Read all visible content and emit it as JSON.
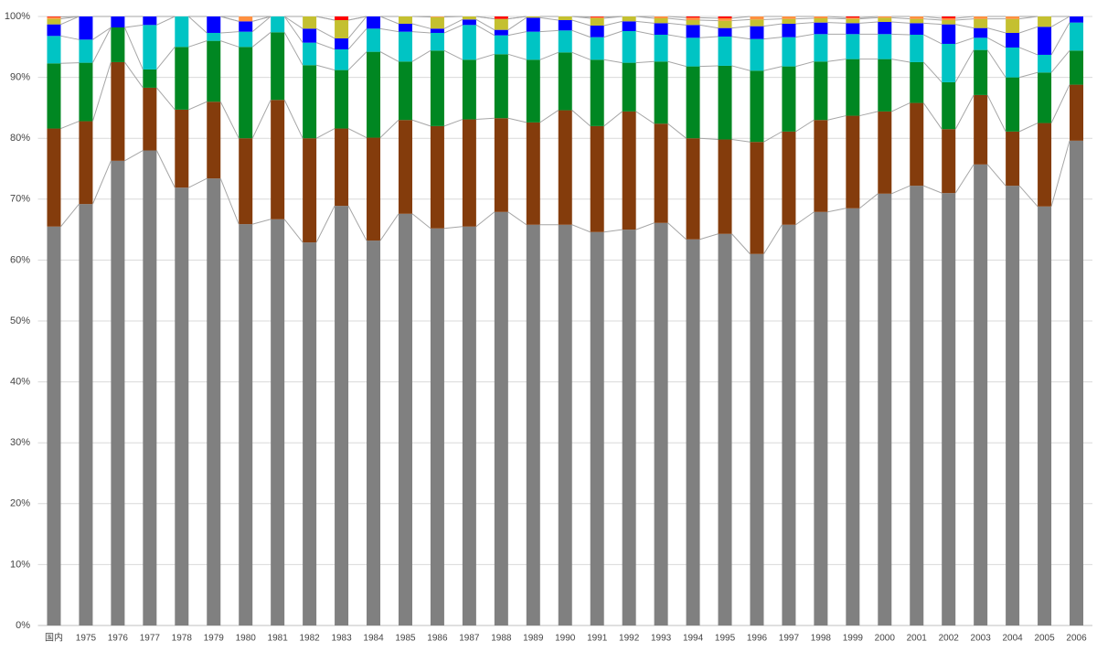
{
  "chart_data": {
    "type": "bar",
    "stacked": true,
    "categories": [
      "国内",
      "1975",
      "1976",
      "1977",
      "1978",
      "1979",
      "1980",
      "1981",
      "1982",
      "1983",
      "1984",
      "1985",
      "1986",
      "1987",
      "1988",
      "1989",
      "1990",
      "1991",
      "1992",
      "1993",
      "1994",
      "1995",
      "1996",
      "1997",
      "1998",
      "1999",
      "2000",
      "2001",
      "2002",
      "2003",
      "2004",
      "2005",
      "2006"
    ],
    "series": [
      {
        "color": "#808080",
        "values": [
          65.5,
          69.2,
          76.3,
          78.0,
          71.9,
          73.4,
          65.9,
          66.7,
          62.9,
          68.9,
          63.2,
          67.6,
          65.2,
          65.5,
          67.9,
          65.8,
          65.8,
          64.6,
          65.0,
          66.1,
          63.4,
          64.3,
          61.0,
          65.8,
          67.9,
          68.5,
          70.9,
          72.2,
          71.0,
          75.7,
          72.2,
          68.8,
          79.6
        ]
      },
      {
        "color": "#843c0c",
        "values": [
          16.1,
          13.6,
          16.2,
          10.3,
          12.8,
          12.6,
          14.1,
          19.6,
          17.1,
          12.7,
          16.9,
          15.4,
          16.8,
          17.6,
          15.4,
          16.8,
          18.8,
          17.4,
          19.4,
          16.3,
          16.6,
          15.5,
          18.4,
          15.3,
          15.1,
          15.2,
          13.5,
          13.6,
          10.5,
          11.4,
          8.9,
          13.7,
          9.2
        ]
      },
      {
        "color": "#008722",
        "values": [
          10.7,
          9.6,
          5.7,
          3.0,
          10.3,
          10.0,
          15.0,
          11.1,
          12.0,
          9.6,
          14.1,
          9.6,
          12.4,
          9.8,
          10.5,
          10.3,
          9.5,
          10.9,
          8.0,
          10.2,
          11.8,
          12.1,
          11.7,
          10.7,
          9.6,
          9.3,
          8.6,
          6.7,
          7.7,
          7.4,
          8.9,
          8.3,
          5.6
        ]
      },
      {
        "color": "#00c4c4",
        "values": [
          4.5,
          3.8,
          0,
          7.3,
          5.0,
          1.3,
          2.5,
          2.6,
          3.7,
          3.4,
          3.8,
          4.9,
          2.9,
          5.7,
          3.1,
          4.6,
          3.6,
          3.7,
          5.2,
          4.4,
          4.7,
          4.8,
          5.2,
          4.8,
          4.5,
          4.1,
          4.1,
          4.5,
          6.3,
          2.0,
          4.9,
          2.9,
          4.6
        ]
      },
      {
        "color": "#0000ff",
        "values": [
          1.9,
          3.8,
          1.8,
          1.4,
          0,
          2.7,
          1.7,
          0,
          2.3,
          1.8,
          2.0,
          1.3,
          0.7,
          0.9,
          0.9,
          2.3,
          1.7,
          1.9,
          1.6,
          1.9,
          2.1,
          1.4,
          2.1,
          2.2,
          1.9,
          1.8,
          2.0,
          1.9,
          3.2,
          1.6,
          2.4,
          4.6,
          1.0
        ]
      },
      {
        "color": "#c4c030",
        "values": [
          0.9,
          0,
          0,
          0,
          0,
          0,
          0,
          0,
          2.0,
          3.0,
          0,
          1.2,
          1.9,
          0.5,
          1.8,
          0.2,
          0.6,
          1.2,
          0.8,
          0.8,
          0.8,
          1.2,
          1.1,
          0.8,
          0.7,
          0.7,
          0.7,
          0.7,
          0.7,
          1.5,
          2.3,
          1.7,
          0
        ]
      },
      {
        "color": "#ff9040",
        "values": [
          0.3,
          0,
          0,
          0,
          0,
          0,
          0.8,
          0,
          0,
          0,
          0,
          0,
          0.1,
          0,
          0,
          0,
          0,
          0.2,
          0,
          0.3,
          0.4,
          0.4,
          0.5,
          0.4,
          0.3,
          0.2,
          0.2,
          0.4,
          0.3,
          0.4,
          0.4,
          0,
          0
        ]
      },
      {
        "color": "#ff0000",
        "values": [
          0.1,
          0,
          0,
          0,
          0,
          0,
          0,
          0,
          0,
          0.6,
          0,
          0,
          0,
          0,
          0.4,
          0,
          0,
          0.1,
          0,
          0,
          0.2,
          0.3,
          0,
          0,
          0,
          0.2,
          0,
          0,
          0.3,
          0,
          0,
          0,
          0
        ]
      }
    ],
    "ylim": [
      0,
      100
    ],
    "yticks": [
      {
        "value": 0,
        "label": "0%"
      },
      {
        "value": 10,
        "label": "10%"
      },
      {
        "value": 20,
        "label": "20%"
      },
      {
        "value": 30,
        "label": "30%"
      },
      {
        "value": 40,
        "label": "40%"
      },
      {
        "value": 50,
        "label": "50%"
      },
      {
        "value": 60,
        "label": "60%"
      },
      {
        "value": 70,
        "label": "70%"
      },
      {
        "value": 80,
        "label": "80%"
      },
      {
        "value": 90,
        "label": "90%"
      },
      {
        "value": 100,
        "label": "100%"
      }
    ],
    "grid": true,
    "series_lines": true
  }
}
